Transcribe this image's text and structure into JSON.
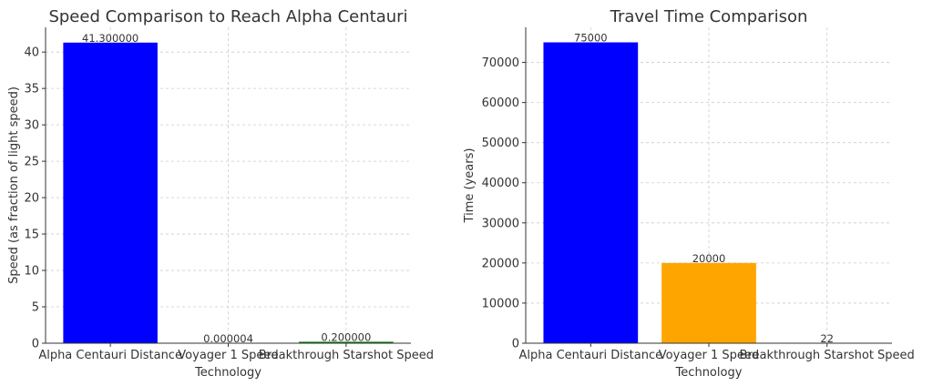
{
  "chart_data": [
    {
      "type": "bar",
      "title": "Speed Comparison to Reach Alpha Centauri",
      "xlabel": "Technology",
      "ylabel": "Speed (as fraction of light speed)",
      "categories": [
        "Alpha Centauri Distance",
        "Voyager 1 Speed",
        "Breakthrough Starshot Speed"
      ],
      "values": [
        41.3,
        4e-06,
        0.2
      ],
      "data_labels": [
        "41.300000",
        "0.000004",
        "0.200000"
      ],
      "colors": [
        "#0000ff",
        "#ffa500",
        "#008000"
      ],
      "ylim": [
        0,
        43.4
      ],
      "yticks": [
        0,
        5,
        10,
        15,
        20,
        25,
        30,
        35,
        40
      ],
      "grid": true
    },
    {
      "type": "bar",
      "title": "Travel Time Comparison",
      "xlabel": "Technology",
      "ylabel": "Time (years)",
      "categories": [
        "Alpha Centauri Distance",
        "Voyager 1 Speed",
        "Breakthrough Starshot Speed"
      ],
      "values": [
        75000,
        20000,
        22
      ],
      "data_labels": [
        "75000",
        "20000",
        "22"
      ],
      "colors": [
        "#0000ff",
        "#ffa500",
        "#008000"
      ],
      "ylim": [
        0,
        78750
      ],
      "yticks": [
        0,
        10000,
        20000,
        30000,
        40000,
        50000,
        60000,
        70000
      ],
      "grid": true
    }
  ]
}
